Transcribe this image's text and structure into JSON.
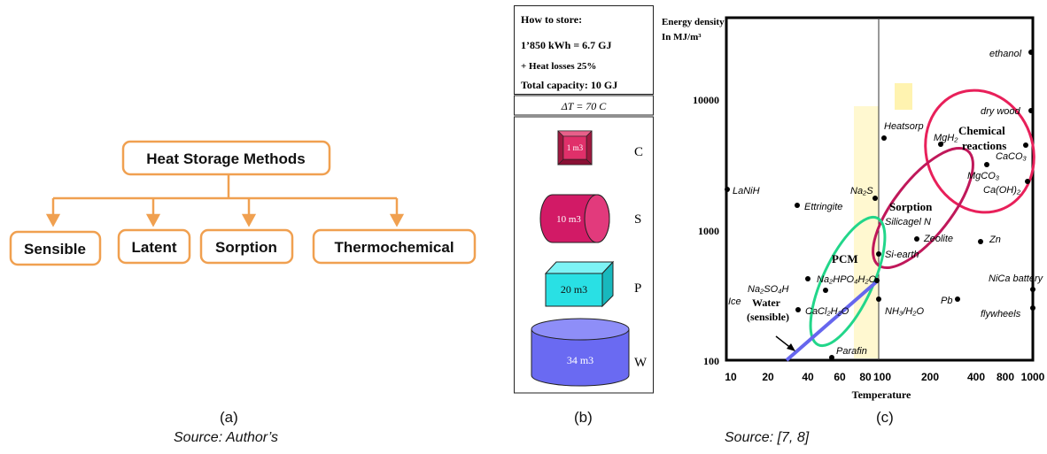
{
  "panel_a": {
    "root": "Heat Storage Methods",
    "children": [
      "Sensible",
      "Latent",
      "Sorption",
      "Thermochemical"
    ],
    "colors": {
      "box_border": "#f0a050",
      "connector": "#f0a050"
    },
    "caption": "(a)",
    "source": "Source: Author’s"
  },
  "panel_b": {
    "header": {
      "title": "How to store:",
      "line1": "1’850 kWh = 6.7 GJ",
      "line2": "+ Heat losses 25%",
      "line3": "Total capacity: 10 GJ"
    },
    "delta_t": "ΔT = 70 C",
    "items": [
      {
        "volume": "1 m3",
        "letter": "C",
        "shape": "cube-pyramid",
        "color": "#e0306a"
      },
      {
        "volume": "10 m3",
        "letter": "S",
        "shape": "horizontal-cylinder",
        "color": "#d21a66"
      },
      {
        "volume": "20 m3",
        "letter": "P",
        "shape": "box",
        "color": "#29e0e4"
      },
      {
        "volume": "34 m3",
        "letter": "W",
        "shape": "vertical-cylinder",
        "color": "#6a6af2"
      }
    ],
    "caption": "(b)"
  },
  "panel_c": {
    "ylabel_line1": "Energy density",
    "ylabel_line2": "In MJ/m³",
    "xlabel": "Temperature",
    "y_ticks": [
      "10000",
      "1000",
      "100"
    ],
    "x_ticks": [
      "10",
      "20",
      "40",
      "60",
      "80",
      "100",
      "200",
      "400",
      "800",
      "1000"
    ],
    "points": [
      {
        "label": "ethanol"
      },
      {
        "label": "dry wood"
      },
      {
        "label": "Heatsorp"
      },
      {
        "label": "MgH₂"
      },
      {
        "label": "CaCO₃"
      },
      {
        "label": "MgCO₃"
      },
      {
        "label": "Ca(OH)₂"
      },
      {
        "label": "LaNiH"
      },
      {
        "label": "Ettringite"
      },
      {
        "label": "Na₂S"
      },
      {
        "label": "Silicagel N"
      },
      {
        "label": "Zeolite"
      },
      {
        "label": "Zn"
      },
      {
        "label": "Si-earth"
      },
      {
        "label": "Na₂SO₄H"
      },
      {
        "label": "Na₂HPO₄H₂O"
      },
      {
        "label": "NiCa battery"
      },
      {
        "label": "Ice"
      },
      {
        "label": "CaCl₂H₂O"
      },
      {
        "label": "NH₃/H₂O"
      },
      {
        "label": "Pb"
      },
      {
        "label": "flywheels"
      },
      {
        "label": "Parafin"
      }
    ],
    "regions": {
      "chemical": "Chemical reactions",
      "sorption": "Sorption",
      "pcm": "PCM",
      "water": "Water (sensible)"
    },
    "colors": {
      "chemical": "#e8205a",
      "sorption": "#c0185a",
      "pcm": "#22d68a",
      "water": "#6666ee"
    },
    "caption": "(c)",
    "source": "Source: [7, 8]"
  }
}
